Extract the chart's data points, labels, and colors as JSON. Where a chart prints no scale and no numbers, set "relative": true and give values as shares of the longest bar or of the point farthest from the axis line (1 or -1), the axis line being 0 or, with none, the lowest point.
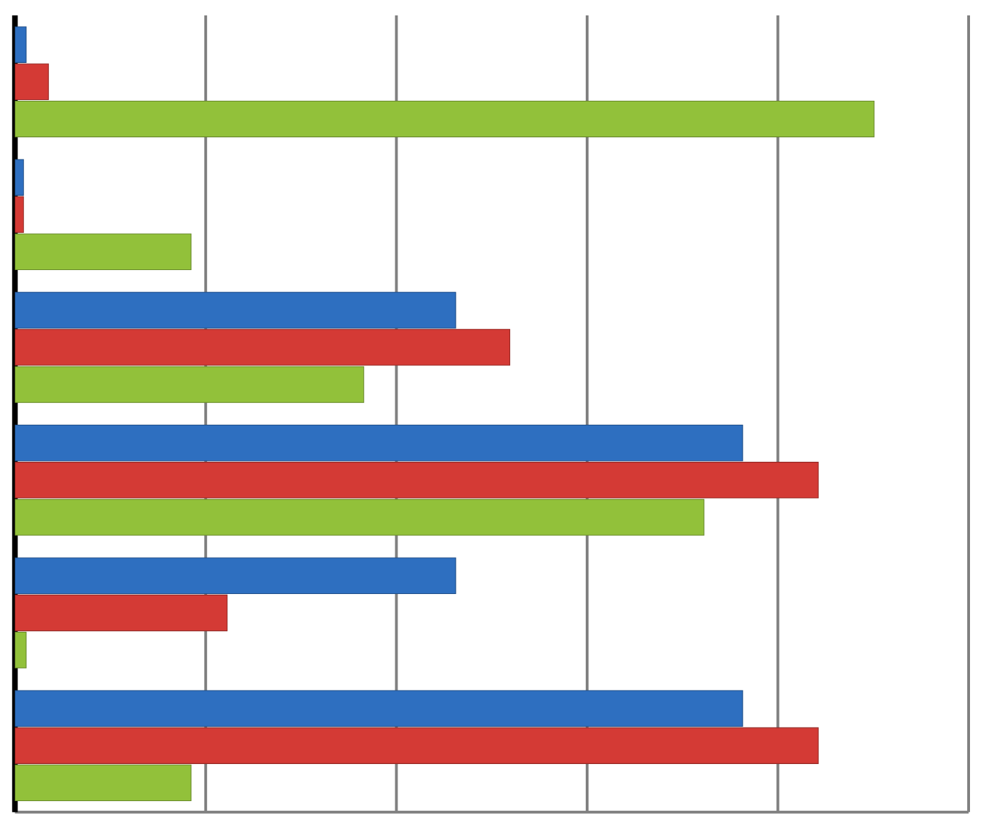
{
  "chart_data": {
    "type": "bar",
    "orientation": "horizontal",
    "relative": true,
    "grid": "x",
    "categories": [
      null,
      null,
      null,
      null,
      null,
      null
    ],
    "series": [
      {
        "color": "#2e6fc0",
        "values": [
          0.013,
          0.01,
          0.513,
          0.847,
          0.513,
          0.847
        ]
      },
      {
        "color": "#d43a35",
        "values": [
          0.039,
          0.01,
          0.576,
          0.935,
          0.247,
          0.935
        ]
      },
      {
        "color": "#92c13a",
        "values": [
          1,
          0.205,
          0.406,
          0.802,
          0.013,
          0.205
        ]
      }
    ]
  }
}
